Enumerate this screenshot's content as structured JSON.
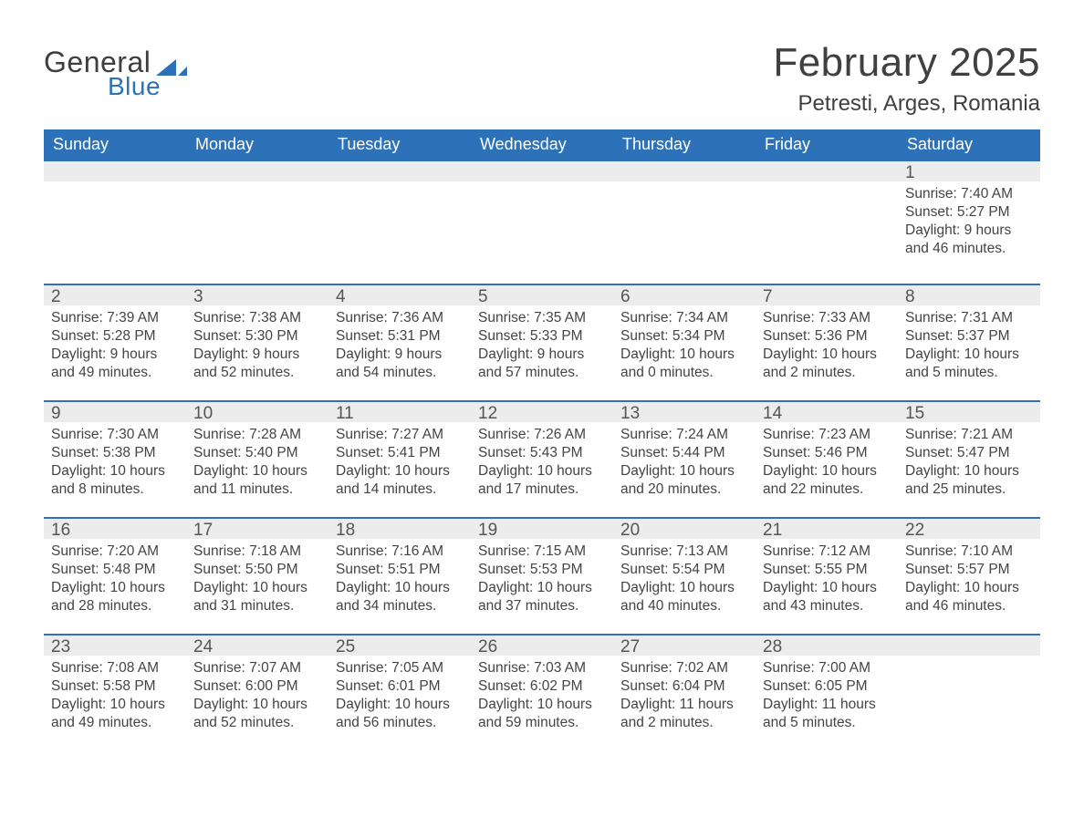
{
  "brand": {
    "logo_word1": "General",
    "logo_word2": "Blue",
    "logo_color1": "#3e3e3e",
    "logo_color2": "#2d72b8",
    "mark_color": "#2d72b8"
  },
  "header": {
    "title": "February 2025",
    "subtitle": "Petresti, Arges, Romania",
    "title_fontsize": 44,
    "subtitle_fontsize": 24
  },
  "calendar": {
    "header_bg": "#2d72b8",
    "header_fg": "#ffffff",
    "daynum_bg": "#ececec",
    "border_top_color": "#2d72b8",
    "text_color": "#444444",
    "columns": [
      "Sunday",
      "Monday",
      "Tuesday",
      "Wednesday",
      "Thursday",
      "Friday",
      "Saturday"
    ],
    "weeks": [
      [
        null,
        null,
        null,
        null,
        null,
        null,
        {
          "n": "1",
          "sunrise": "7:40 AM",
          "sunset": "5:27 PM",
          "daylight": "9 hours and 46 minutes."
        }
      ],
      [
        {
          "n": "2",
          "sunrise": "7:39 AM",
          "sunset": "5:28 PM",
          "daylight": "9 hours and 49 minutes."
        },
        {
          "n": "3",
          "sunrise": "7:38 AM",
          "sunset": "5:30 PM",
          "daylight": "9 hours and 52 minutes."
        },
        {
          "n": "4",
          "sunrise": "7:36 AM",
          "sunset": "5:31 PM",
          "daylight": "9 hours and 54 minutes."
        },
        {
          "n": "5",
          "sunrise": "7:35 AM",
          "sunset": "5:33 PM",
          "daylight": "9 hours and 57 minutes."
        },
        {
          "n": "6",
          "sunrise": "7:34 AM",
          "sunset": "5:34 PM",
          "daylight": "10 hours and 0 minutes."
        },
        {
          "n": "7",
          "sunrise": "7:33 AM",
          "sunset": "5:36 PM",
          "daylight": "10 hours and 2 minutes."
        },
        {
          "n": "8",
          "sunrise": "7:31 AM",
          "sunset": "5:37 PM",
          "daylight": "10 hours and 5 minutes."
        }
      ],
      [
        {
          "n": "9",
          "sunrise": "7:30 AM",
          "sunset": "5:38 PM",
          "daylight": "10 hours and 8 minutes."
        },
        {
          "n": "10",
          "sunrise": "7:28 AM",
          "sunset": "5:40 PM",
          "daylight": "10 hours and 11 minutes."
        },
        {
          "n": "11",
          "sunrise": "7:27 AM",
          "sunset": "5:41 PM",
          "daylight": "10 hours and 14 minutes."
        },
        {
          "n": "12",
          "sunrise": "7:26 AM",
          "sunset": "5:43 PM",
          "daylight": "10 hours and 17 minutes."
        },
        {
          "n": "13",
          "sunrise": "7:24 AM",
          "sunset": "5:44 PM",
          "daylight": "10 hours and 20 minutes."
        },
        {
          "n": "14",
          "sunrise": "7:23 AM",
          "sunset": "5:46 PM",
          "daylight": "10 hours and 22 minutes."
        },
        {
          "n": "15",
          "sunrise": "7:21 AM",
          "sunset": "5:47 PM",
          "daylight": "10 hours and 25 minutes."
        }
      ],
      [
        {
          "n": "16",
          "sunrise": "7:20 AM",
          "sunset": "5:48 PM",
          "daylight": "10 hours and 28 minutes."
        },
        {
          "n": "17",
          "sunrise": "7:18 AM",
          "sunset": "5:50 PM",
          "daylight": "10 hours and 31 minutes."
        },
        {
          "n": "18",
          "sunrise": "7:16 AM",
          "sunset": "5:51 PM",
          "daylight": "10 hours and 34 minutes."
        },
        {
          "n": "19",
          "sunrise": "7:15 AM",
          "sunset": "5:53 PM",
          "daylight": "10 hours and 37 minutes."
        },
        {
          "n": "20",
          "sunrise": "7:13 AM",
          "sunset": "5:54 PM",
          "daylight": "10 hours and 40 minutes."
        },
        {
          "n": "21",
          "sunrise": "7:12 AM",
          "sunset": "5:55 PM",
          "daylight": "10 hours and 43 minutes."
        },
        {
          "n": "22",
          "sunrise": "7:10 AM",
          "sunset": "5:57 PM",
          "daylight": "10 hours and 46 minutes."
        }
      ],
      [
        {
          "n": "23",
          "sunrise": "7:08 AM",
          "sunset": "5:58 PM",
          "daylight": "10 hours and 49 minutes."
        },
        {
          "n": "24",
          "sunrise": "7:07 AM",
          "sunset": "6:00 PM",
          "daylight": "10 hours and 52 minutes."
        },
        {
          "n": "25",
          "sunrise": "7:05 AM",
          "sunset": "6:01 PM",
          "daylight": "10 hours and 56 minutes."
        },
        {
          "n": "26",
          "sunrise": "7:03 AM",
          "sunset": "6:02 PM",
          "daylight": "10 hours and 59 minutes."
        },
        {
          "n": "27",
          "sunrise": "7:02 AM",
          "sunset": "6:04 PM",
          "daylight": "11 hours and 2 minutes."
        },
        {
          "n": "28",
          "sunrise": "7:00 AM",
          "sunset": "6:05 PM",
          "daylight": "11 hours and 5 minutes."
        },
        null
      ]
    ],
    "labels": {
      "sunrise": "Sunrise:",
      "sunset": "Sunset:",
      "daylight": "Daylight:"
    }
  }
}
